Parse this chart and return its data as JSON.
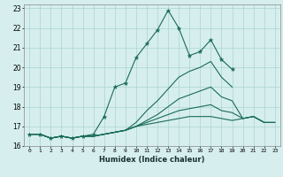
{
  "title": "",
  "xlabel": "Humidex (Indice chaleur)",
  "ylabel": "",
  "xlim": [
    -0.5,
    23.5
  ],
  "ylim": [
    16,
    23.2
  ],
  "yticks": [
    16,
    17,
    18,
    19,
    20,
    21,
    22,
    23
  ],
  "xticks": [
    0,
    1,
    2,
    3,
    4,
    5,
    6,
    7,
    8,
    9,
    10,
    11,
    12,
    13,
    14,
    15,
    16,
    17,
    18,
    19,
    20,
    21,
    22,
    23
  ],
  "bg_color": "#d6eeee",
  "line_color": "#1a6b5a",
  "grid_color": "#aad4d4",
  "lines": [
    {
      "x": [
        0,
        1,
        2,
        3,
        4,
        5,
        6,
        7,
        8,
        9,
        10,
        11,
        12,
        13,
        14,
        15,
        16,
        17,
        18,
        19
      ],
      "y": [
        16.6,
        16.6,
        16.4,
        16.5,
        16.4,
        16.5,
        16.6,
        17.5,
        19.0,
        19.2,
        20.5,
        21.2,
        21.9,
        22.9,
        22.0,
        20.6,
        20.8,
        21.4,
        20.4,
        19.9
      ],
      "marker": true
    },
    {
      "x": [
        0,
        1,
        2,
        3,
        4,
        5,
        6,
        7,
        8,
        9,
        10,
        11,
        12,
        13,
        14,
        15,
        16,
        17,
        18,
        19
      ],
      "y": [
        16.6,
        16.6,
        16.4,
        16.5,
        16.4,
        16.5,
        16.5,
        16.6,
        16.7,
        16.8,
        17.2,
        17.8,
        18.3,
        18.9,
        19.5,
        19.8,
        20.0,
        20.3,
        19.5,
        19.0
      ],
      "marker": false
    },
    {
      "x": [
        0,
        1,
        2,
        3,
        4,
        5,
        6,
        7,
        8,
        9,
        10,
        11,
        12,
        13,
        14,
        15,
        16,
        17,
        18,
        19,
        20,
        21,
        22
      ],
      "y": [
        16.6,
        16.6,
        16.4,
        16.5,
        16.4,
        16.5,
        16.5,
        16.6,
        16.7,
        16.8,
        17.0,
        17.3,
        17.6,
        18.0,
        18.4,
        18.6,
        18.8,
        19.0,
        18.5,
        18.3,
        17.4,
        17.5,
        17.2
      ],
      "marker": false
    },
    {
      "x": [
        0,
        1,
        2,
        3,
        4,
        5,
        6,
        7,
        8,
        9,
        10,
        11,
        12,
        13,
        14,
        15,
        16,
        17,
        18,
        19,
        20,
        21,
        22,
        23
      ],
      "y": [
        16.6,
        16.6,
        16.4,
        16.5,
        16.4,
        16.5,
        16.5,
        16.6,
        16.7,
        16.8,
        17.0,
        17.2,
        17.4,
        17.6,
        17.8,
        17.9,
        18.0,
        18.1,
        17.8,
        17.7,
        17.4,
        17.5,
        17.2,
        17.2
      ],
      "marker": false
    },
    {
      "x": [
        0,
        1,
        2,
        3,
        4,
        5,
        6,
        7,
        8,
        9,
        10,
        11,
        12,
        13,
        14,
        15,
        16,
        17,
        18,
        19,
        20,
        21,
        22,
        23
      ],
      "y": [
        16.6,
        16.6,
        16.4,
        16.5,
        16.4,
        16.5,
        16.5,
        16.6,
        16.7,
        16.8,
        17.0,
        17.1,
        17.2,
        17.3,
        17.4,
        17.5,
        17.5,
        17.5,
        17.4,
        17.3,
        17.4,
        17.5,
        17.2,
        17.2
      ],
      "marker": false
    }
  ]
}
